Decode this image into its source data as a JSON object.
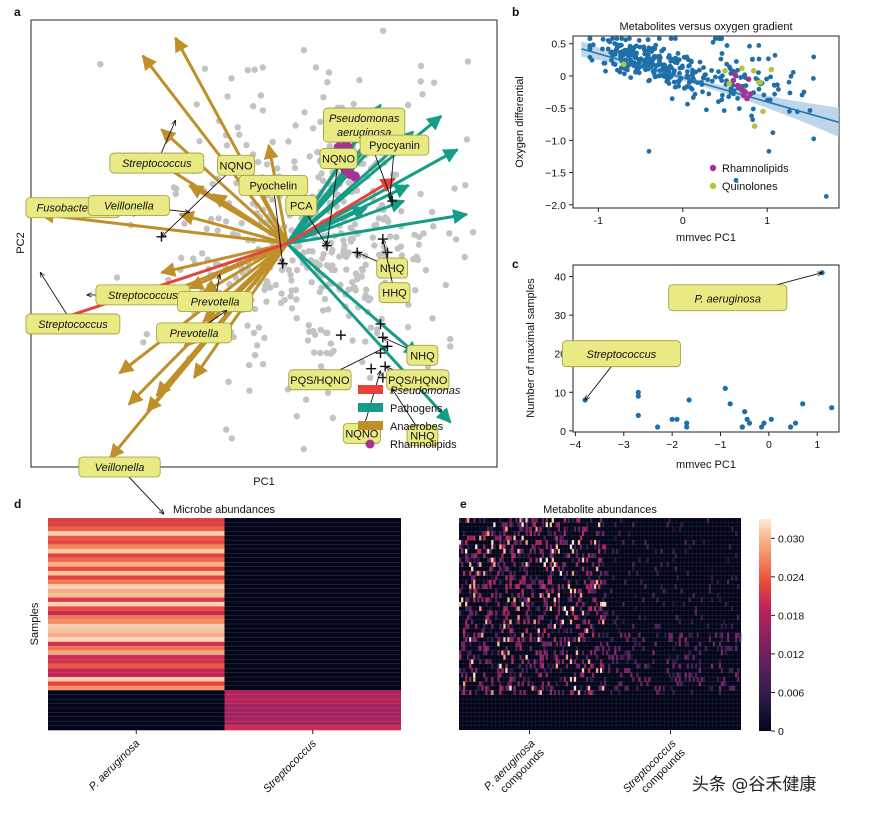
{
  "figure": {
    "panel_letters": [
      "a",
      "b",
      "c",
      "d",
      "e"
    ],
    "watermark": "头条 @谷禾健康"
  },
  "chart_data": [
    {
      "panel": "a",
      "type": "scatter",
      "title": "",
      "xlabel": "PC1",
      "ylabel": "PC2",
      "xlim": [
        -10,
        10
      ],
      "ylim": [
        -10,
        10
      ],
      "origin": [
        1,
        0
      ],
      "background_points": 460,
      "arrows": {
        "anaerobes": [
          [
            -3.8,
            9.2
          ],
          [
            -5.2,
            8.4
          ],
          [
            -4.4,
            5.1
          ],
          [
            -4.8,
            3.8
          ],
          [
            -3.2,
            2.6
          ],
          [
            -2.2,
            2.2
          ],
          [
            -1.0,
            3.9
          ],
          [
            -0.4,
            2.9
          ],
          [
            0.2,
            4.4
          ],
          [
            -9.6,
            1.3
          ],
          [
            -3.6,
            1.3
          ],
          [
            -5.0,
            -2.6
          ],
          [
            -3.2,
            -2.0
          ],
          [
            -2.6,
            -2.2
          ],
          [
            -3.4,
            -4.6
          ],
          [
            -6.2,
            -5.8
          ],
          [
            -5.0,
            -7.5
          ],
          [
            -3.0,
            -6.0
          ],
          [
            -4.6,
            -6.8
          ],
          [
            -5.8,
            -7.2
          ],
          [
            -6.6,
            -9.6
          ],
          [
            -4.4,
            -1.3
          ],
          [
            -2.6,
            -3.5
          ]
        ],
        "pathogens": [
          [
            4.8,
            6.0
          ],
          [
            5.2,
            5.6
          ],
          [
            5.6,
            5.8
          ],
          [
            5.0,
            6.2
          ],
          [
            5.4,
            5.2
          ],
          [
            6.4,
            5.0
          ],
          [
            7.6,
            5.7
          ],
          [
            8.7,
            1.3
          ],
          [
            8.3,
            4.2
          ],
          [
            8.0,
            -8.0
          ],
          [
            6.6,
            -5.0
          ],
          [
            6.2,
            2.6
          ],
          [
            6.0,
            1.9
          ],
          [
            4.4,
            1.6
          ]
        ],
        "pseudomonas": [
          [
            -9.7,
            -3.7
          ],
          [
            5.6,
            2.9
          ]
        ]
      },
      "rhamnolipids": [
        [
          3.3,
          5.1
        ],
        [
          3.5,
          4.6
        ],
        [
          3.6,
          4.3
        ],
        [
          3.4,
          3.9
        ],
        [
          3.7,
          3.6
        ],
        [
          3.5,
          3.3
        ],
        [
          3.9,
          3.0
        ],
        [
          3.3,
          4.8
        ],
        [
          3.6,
          4.0
        ],
        [
          3.4,
          3.5
        ],
        [
          3.8,
          3.8
        ],
        [
          3.2,
          4.3
        ],
        [
          3.7,
          3.1
        ],
        [
          3.5,
          4.2
        ]
      ],
      "crosses": [
        [
          -4.4,
          0.3
        ],
        [
          0.8,
          -0.9
        ],
        [
          2.7,
          -0.1
        ],
        [
          4.0,
          -0.4
        ],
        [
          5.1,
          0.2
        ],
        [
          5.3,
          -0.4
        ],
        [
          5.0,
          -3.6
        ],
        [
          5.1,
          -4.2
        ],
        [
          5.3,
          -4.6
        ],
        [
          5.2,
          -5.5
        ],
        [
          5.1,
          -6.0
        ],
        [
          3.3,
          -4.1
        ],
        [
          4.6,
          -5.6
        ],
        [
          5.0,
          -4.9
        ],
        [
          5.5,
          1.9
        ]
      ],
      "annotations": [
        {
          "text": "Streptococcus",
          "italic": true,
          "anchor": [
            -4.6,
            3.6
          ],
          "target": [
            -3.8,
            5.5
          ]
        },
        {
          "text": "NQNO",
          "italic": false,
          "anchor": [
            -1.2,
            3.5
          ],
          "target": [
            -4.4,
            0.3
          ]
        },
        {
          "text": "Pyochelin",
          "italic": false,
          "anchor": [
            0.4,
            2.6
          ],
          "target": [
            0.8,
            -0.9
          ]
        },
        {
          "text": "Pseudomonas aeruginosa",
          "italic": true,
          "anchor": [
            4.3,
            5.3
          ],
          "target": [
            5.5,
            1.9
          ]
        },
        {
          "text": "NQNO",
          "italic": false,
          "anchor": [
            3.2,
            3.8
          ],
          "target": [
            2.7,
            -0.1
          ]
        },
        {
          "text": "Pyocyanin",
          "italic": false,
          "anchor": [
            5.6,
            4.4
          ],
          "target": [
            5.4,
            2.0
          ]
        },
        {
          "text": "PCA",
          "italic": false,
          "anchor": [
            1.6,
            1.7
          ],
          "target": [
            2.7,
            -0.1
          ]
        },
        {
          "text": "Fusobacterium",
          "italic": true,
          "anchor": [
            -8.2,
            1.6
          ],
          "target": [
            -5.4,
            1.3
          ]
        },
        {
          "text": "Veillonella",
          "italic": true,
          "anchor": [
            -5.8,
            1.7
          ],
          "target": [
            -3.2,
            1.4
          ]
        },
        {
          "text": "NHQ",
          "italic": false,
          "anchor": [
            5.5,
            -1.1
          ],
          "target": [
            4.0,
            -0.4
          ]
        },
        {
          "text": "HHQ",
          "italic": false,
          "anchor": [
            5.6,
            -2.2
          ],
          "target": [
            5.1,
            0.2
          ]
        },
        {
          "text": "Streptococcus",
          "italic": true,
          "anchor": [
            -5.2,
            -2.3
          ],
          "target": [
            -7.6,
            -2.3
          ]
        },
        {
          "text": "Prevotella",
          "italic": true,
          "anchor": [
            -2.1,
            -2.6
          ],
          "target": [
            -1.9,
            -1.4
          ]
        },
        {
          "text": "Streptococcus",
          "italic": true,
          "anchor": [
            -8.2,
            -3.6
          ],
          "target": [
            -9.6,
            -1.3
          ]
        },
        {
          "text": "Prevotella",
          "italic": true,
          "anchor": [
            -3.0,
            -4.0
          ],
          "target": [
            -1.6,
            -3.0
          ]
        },
        {
          "text": "NHQ",
          "italic": false,
          "anchor": [
            6.8,
            -5.0
          ],
          "target": [
            5.1,
            -4.2
          ]
        },
        {
          "text": "PQS/HQNO",
          "italic": false,
          "anchor": [
            2.4,
            -6.1
          ],
          "target": [
            5.3,
            -4.6
          ]
        },
        {
          "text": "PQS/HQNO",
          "italic": false,
          "anchor": [
            6.6,
            -6.1
          ],
          "target": [
            5.2,
            -5.5
          ]
        },
        {
          "text": "NQNO",
          "italic": false,
          "anchor": [
            4.2,
            -8.5
          ],
          "target": [
            5.0,
            -5.7
          ]
        },
        {
          "text": "NHQ",
          "italic": false,
          "anchor": [
            6.8,
            -8.6
          ],
          "target": [
            5.5,
            -6.5
          ]
        },
        {
          "text": "Veillonella",
          "italic": true,
          "anchor": [
            -6.2,
            -10.0
          ],
          "target": [
            -4.3,
            -12.1
          ]
        }
      ],
      "legend": {
        "placement": "lower-right",
        "entries": [
          {
            "label": "Pseudomonas",
            "italic": true,
            "color": "#e8413b",
            "kind": "patch"
          },
          {
            "label": "Pathogens",
            "italic": false,
            "color": "#169d87",
            "kind": "patch"
          },
          {
            "label": "Anaerobes",
            "italic": false,
            "color": "#bf8f2a",
            "kind": "patch"
          },
          {
            "label": "Rhamnolipids",
            "italic": false,
            "color": "#a53294",
            "kind": "dot"
          }
        ]
      },
      "colors": {
        "background_points": "#c3c3c3",
        "anaerobes": "#bf8f2a",
        "pathogens": "#169d87",
        "pseudomonas": "#e8413b",
        "rhamnolipids": "#a53294",
        "crosses": "#111111",
        "label_fill": "#e9ea84",
        "label_stroke": "#9b9b3a"
      }
    },
    {
      "panel": "b",
      "type": "scatter",
      "title": "Metabolites versus oxygen gradient",
      "xlabel": "mmvec PC1",
      "ylabel": "Oxygen differential",
      "xlim": [
        -1.3,
        1.85
      ],
      "ylim": [
        -2.05,
        0.62
      ],
      "xticks": [
        -1,
        0,
        1
      ],
      "yticks": [
        0.5,
        0.0,
        -0.5,
        -1.0,
        -1.5,
        -2.0
      ],
      "ytick_labels": [
        "0.5",
        "0",
        "−0.5",
        "−1.0",
        "−1.5",
        "−2.0"
      ],
      "regression": {
        "x": [
          -1.2,
          1.85
        ],
        "y": [
          0.42,
          -0.72
        ],
        "band": 0.07
      },
      "n_points": 340,
      "rhamnolipids": [
        [
          0.6,
          -0.07
        ],
        [
          0.65,
          -0.15
        ],
        [
          0.7,
          -0.22
        ],
        [
          0.72,
          -0.3
        ],
        [
          0.74,
          -0.25
        ],
        [
          0.68,
          -0.18
        ],
        [
          0.78,
          -0.05
        ],
        [
          0.76,
          -0.35
        ],
        [
          0.62,
          0.02
        ],
        [
          0.8,
          -0.28
        ]
      ],
      "quinolones": [
        [
          -0.7,
          0.18
        ],
        [
          0.5,
          0.08
        ],
        [
          0.55,
          -0.12
        ],
        [
          0.85,
          -0.78
        ],
        [
          0.84,
          0.08
        ],
        [
          0.9,
          -0.1
        ],
        [
          0.7,
          0.12
        ],
        [
          0.95,
          -0.55
        ],
        [
          1.05,
          0.1
        ],
        [
          0.92,
          -0.1
        ]
      ],
      "outliers": [
        [
          1.02,
          -1.17
        ],
        [
          0.63,
          -1.62
        ],
        [
          1.7,
          -1.87
        ],
        [
          -0.4,
          -1.17
        ]
      ],
      "legend": {
        "placement": "lower-right",
        "entries": [
          {
            "label": "Rhamnolipids",
            "color": "#a53294"
          },
          {
            "label": "Quinolones",
            "color": "#b5c43c"
          }
        ]
      },
      "colors": {
        "points": "#1f6ea8",
        "line": "#1f77b4",
        "band": "#a9c8e3"
      }
    },
    {
      "panel": "c",
      "type": "scatter",
      "title": "",
      "xlabel": "mmvec PC1",
      "ylabel": "Number of maximal samples",
      "xlim": [
        -4.05,
        1.45
      ],
      "ylim": [
        -0.3,
        43
      ],
      "xticks": [
        -4,
        -3,
        -2,
        -1,
        0,
        1
      ],
      "xtick_labels": [
        "−4",
        "−3",
        "−2",
        "−1",
        "0",
        "1"
      ],
      "yticks": [
        0,
        10,
        20,
        30,
        40
      ],
      "x": [
        -3.8,
        -2.7,
        -2.7,
        -2.7,
        -2.3,
        -2.0,
        -1.9,
        -1.7,
        -1.7,
        -1.65,
        -0.9,
        -0.8,
        -0.55,
        -0.55,
        -0.5,
        -0.45,
        -0.4,
        -0.15,
        -0.1,
        0.05,
        0.45,
        0.55,
        0.7,
        1.1,
        1.3
      ],
      "y": [
        8,
        10,
        9,
        4,
        1,
        3,
        3,
        2,
        1,
        8,
        11,
        7,
        1,
        1,
        5,
        3,
        2,
        1,
        2,
        3,
        1,
        2,
        7,
        41,
        6
      ],
      "annotations": [
        {
          "text": "P. aeruginosa",
          "italic": true,
          "target": [
            1.1,
            41
          ],
          "anchor": [
            -0.85,
            34.5
          ]
        },
        {
          "text": "Streptococcus",
          "italic": true,
          "target": [
            -3.8,
            8
          ],
          "anchor": [
            -3.05,
            20
          ]
        }
      ],
      "colors": {
        "points": "#1f6ea8"
      }
    },
    {
      "panel": "d",
      "type": "heatmap",
      "title": "Microbe abundances",
      "xlabel": "",
      "ylabel": "Samples",
      "columns": [
        "P. aeruginosa",
        "Streptococcus"
      ],
      "row_count": 48,
      "split_row": 39
    },
    {
      "panel": "e",
      "type": "heatmap",
      "title": "Metabolite abundances",
      "xlabel": "",
      "ylabel": "",
      "column_groups": [
        "P. aeruginosa compounds",
        "Streptococcus compounds"
      ],
      "row_count": 48,
      "column_count": 140,
      "colorbar": {
        "min": 0,
        "max": 0.033,
        "ticks": [
          0,
          0.006,
          0.012,
          0.018,
          0.024,
          0.03
        ],
        "tick_labels": [
          "0",
          "0.006",
          "0.012",
          "0.018",
          "0.024",
          "0.030"
        ]
      }
    }
  ]
}
